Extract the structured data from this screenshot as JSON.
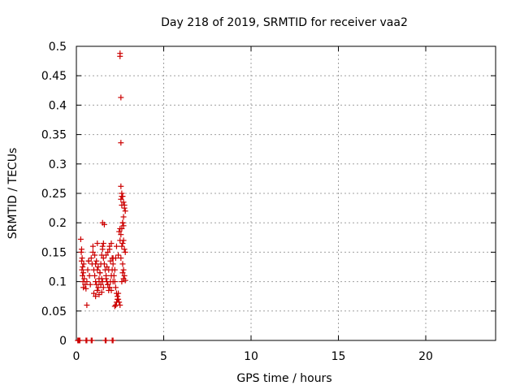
{
  "chart_data": {
    "type": "scatter",
    "title": "Day 218 of 2019, SRMTID for receiver vaa2",
    "xlabel": "GPS time / hours",
    "ylabel": "SRMTID / TECUs",
    "xlim": [
      0,
      24
    ],
    "ylim": [
      0,
      0.5
    ],
    "xticks": [
      0,
      5,
      10,
      15,
      20
    ],
    "xtick_labels": [
      "0",
      "5",
      "10",
      "15",
      "20"
    ],
    "yticks": [
      0,
      0.05,
      0.1,
      0.15,
      0.2,
      0.25,
      0.3,
      0.35,
      0.4,
      0.45,
      0.5
    ],
    "ytick_labels": [
      "0",
      "0.05",
      "0.1",
      "0.15",
      "0.2",
      "0.25",
      "0.3",
      "0.35",
      "0.4",
      "0.45",
      "0.5"
    ],
    "grid": true,
    "marker": "+",
    "color": "#cc0000",
    "series": [
      {
        "x": [
          0.08,
          0.12,
          0.16,
          0.2,
          0.55,
          0.6,
          0.85,
          0.9,
          1.65,
          1.7,
          2.05,
          2.1,
          0.25,
          0.28,
          0.3,
          0.32,
          0.35,
          0.38,
          0.4,
          0.42,
          0.3,
          0.33,
          0.36,
          0.4,
          0.45,
          0.5,
          0.55,
          0.6,
          0.65,
          0.7,
          0.75,
          0.8,
          0.85,
          0.9,
          0.95,
          1.0,
          1.05,
          1.1,
          1.15,
          1.2,
          1.25,
          1.3,
          1.35,
          1.4,
          1.45,
          1.5,
          1.55,
          1.1,
          1.2,
          1.3,
          1.4,
          1.5,
          0.95,
          1.05,
          1.15,
          1.25,
          1.35,
          1.45,
          1.55,
          1.0,
          1.1,
          1.2,
          1.3,
          1.45,
          1.5,
          1.55,
          1.6,
          1.65,
          1.7,
          1.75,
          1.8,
          1.85,
          1.9,
          1.95,
          2.0,
          2.05,
          2.1,
          1.7,
          1.8,
          1.9,
          2.0,
          1.75,
          1.85,
          1.95,
          2.05,
          1.7,
          1.8,
          1.9,
          2.0,
          2.1,
          2.15,
          2.2,
          2.25,
          2.3,
          2.35,
          2.4,
          2.45,
          2.5,
          2.2,
          2.25,
          2.3,
          2.35,
          2.4,
          2.2,
          2.25,
          2.3,
          2.5,
          2.55,
          2.6,
          2.65,
          2.7,
          2.75,
          2.8,
          2.55,
          2.6,
          2.65,
          2.7,
          2.75,
          2.6,
          2.65,
          2.7,
          2.75,
          2.8,
          2.65,
          2.7,
          2.75,
          2.6,
          2.7,
          2.8,
          2.55,
          2.65,
          2.5,
          2.5,
          2.55,
          2.55,
          2.55,
          2.6,
          2.6,
          2.65,
          2.7,
          0.6,
          1.5,
          1.6,
          1.9,
          2.4,
          2.45,
          2.5,
          0.7,
          1.2,
          2.1
        ],
        "y": [
          0,
          0,
          0,
          0,
          0,
          0,
          0,
          0,
          0,
          0,
          0,
          0,
          0.172,
          0.15,
          0.135,
          0.12,
          0.11,
          0.1,
          0.09,
          0.13,
          0.155,
          0.14,
          0.125,
          0.115,
          0.105,
          0.095,
          0.088,
          0.1,
          0.12,
          0.135,
          0.11,
          0.095,
          0.14,
          0.13,
          0.15,
          0.12,
          0.11,
          0.1,
          0.095,
          0.085,
          0.09,
          0.1,
          0.115,
          0.13,
          0.145,
          0.16,
          0.165,
          0.13,
          0.12,
          0.105,
          0.095,
          0.1,
          0.16,
          0.145,
          0.135,
          0.125,
          0.115,
          0.105,
          0.09,
          0.08,
          0.075,
          0.085,
          0.078,
          0.082,
          0.155,
          0.14,
          0.13,
          0.12,
          0.11,
          0.1,
          0.095,
          0.085,
          0.09,
          0.1,
          0.11,
          0.12,
          0.13,
          0.145,
          0.15,
          0.16,
          0.165,
          0.125,
          0.12,
          0.135,
          0.14,
          0.105,
          0.095,
          0.09,
          0.085,
          0.1,
          0.11,
          0.1,
          0.09,
          0.08,
          0.075,
          0.07,
          0.065,
          0.06,
          0.058,
          0.06,
          0.065,
          0.07,
          0.08,
          0.12,
          0.14,
          0.16,
          0.17,
          0.18,
          0.19,
          0.2,
          0.21,
          0.23,
          0.22,
          0.24,
          0.25,
          0.245,
          0.235,
          0.225,
          0.16,
          0.165,
          0.17,
          0.155,
          0.15,
          0.13,
          0.12,
          0.11,
          0.1,
          0.105,
          0.102,
          0.14,
          0.115,
          0.488,
          0.483,
          0.413,
          0.336,
          0.262,
          0.245,
          0.23,
          0.2,
          0.195,
          0.06,
          0.2,
          0.197,
          0.155,
          0.145,
          0.185,
          0.19,
          0.135,
          0.165,
          0.14
        ]
      }
    ]
  }
}
